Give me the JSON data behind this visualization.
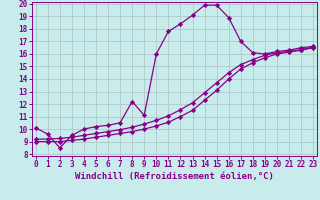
{
  "xlabel": "Windchill (Refroidissement éolien,°C)",
  "background_color": "#c8ecec",
  "line_color": "#880088",
  "grid_color": "#b0c8c8",
  "xmin": 0,
  "xmax": 23,
  "ymin": 8,
  "ymax": 20,
  "x_ticks": [
    0,
    1,
    2,
    3,
    4,
    5,
    6,
    7,
    8,
    9,
    10,
    11,
    12,
    13,
    14,
    15,
    16,
    17,
    18,
    19,
    20,
    21,
    22,
    23
  ],
  "y_ticks": [
    8,
    9,
    10,
    11,
    12,
    13,
    14,
    15,
    16,
    17,
    18,
    19,
    20
  ],
  "line1_x": [
    0,
    1,
    2,
    3,
    4,
    5,
    6,
    7,
    8,
    9,
    10,
    11,
    12,
    13,
    14,
    15,
    16,
    17,
    18,
    19,
    20,
    21,
    22,
    23
  ],
  "line1_y": [
    10.1,
    9.6,
    8.5,
    9.5,
    10.0,
    10.2,
    10.3,
    10.5,
    12.2,
    11.1,
    16.0,
    17.8,
    18.4,
    19.1,
    19.9,
    19.9,
    18.9,
    17.0,
    16.1,
    16.0,
    16.2,
    16.3,
    16.5,
    16.6
  ],
  "line2_x": [
    0,
    1,
    2,
    3,
    4,
    5,
    6,
    7,
    8,
    9,
    10,
    11,
    12,
    13,
    14,
    15,
    16,
    17,
    18,
    19,
    20,
    21,
    22,
    23
  ],
  "line2_y": [
    9.0,
    9.0,
    9.0,
    9.1,
    9.2,
    9.35,
    9.5,
    9.65,
    9.8,
    10.0,
    10.25,
    10.55,
    11.0,
    11.5,
    12.3,
    13.1,
    14.0,
    14.8,
    15.3,
    15.7,
    16.0,
    16.15,
    16.3,
    16.5
  ],
  "line3_x": [
    0,
    1,
    2,
    3,
    4,
    5,
    6,
    7,
    8,
    9,
    10,
    11,
    12,
    13,
    14,
    15,
    16,
    17,
    18,
    19,
    20,
    21,
    22,
    23
  ],
  "line3_y": [
    9.2,
    9.2,
    9.25,
    9.35,
    9.5,
    9.65,
    9.8,
    9.95,
    10.15,
    10.4,
    10.7,
    11.05,
    11.55,
    12.1,
    12.9,
    13.7,
    14.5,
    15.15,
    15.55,
    15.9,
    16.1,
    16.2,
    16.35,
    16.55
  ],
  "marker": "D",
  "markersize": 2.2,
  "linewidth": 0.9,
  "tick_labelsize": 5.5,
  "xlabel_fontsize": 6.5
}
